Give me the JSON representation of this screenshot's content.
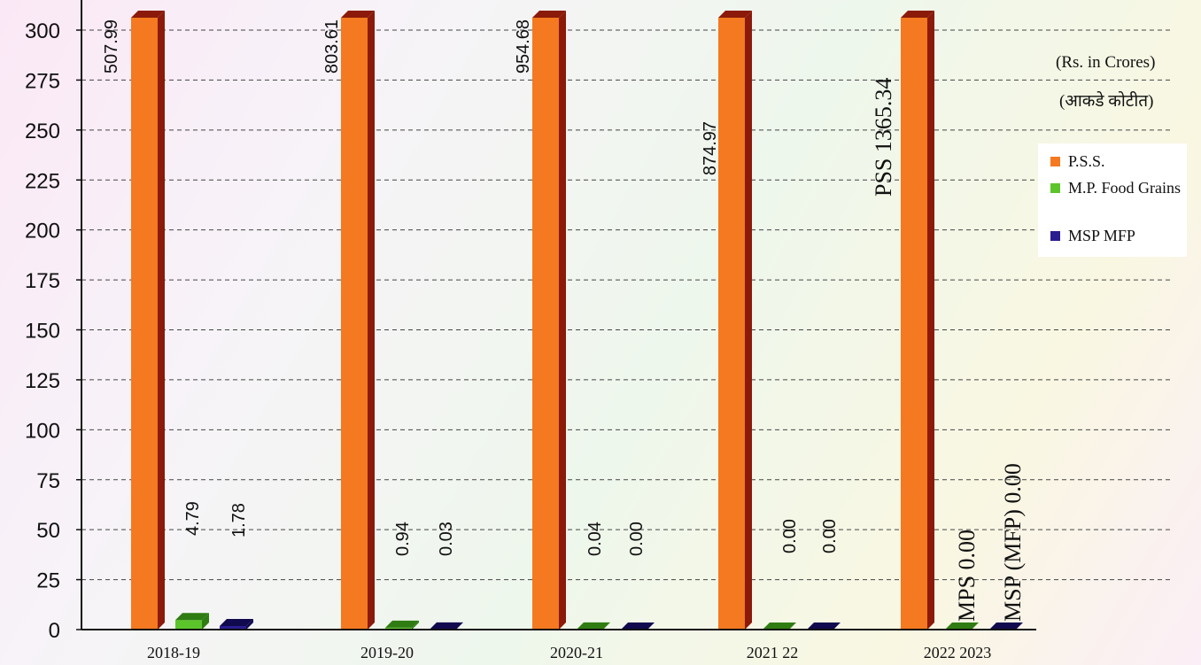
{
  "chart_data": {
    "type": "bar",
    "unit_note": "(Rs. in Crores)",
    "unit_note_local": "(आकडे कोटीत)",
    "categories": [
      "2018-19",
      "2019-20",
      "2020-21",
      "2021 22",
      "2022 2023"
    ],
    "ylim": [
      0,
      300
    ],
    "yticks": [
      0,
      25,
      50,
      75,
      100,
      125,
      150,
      175,
      200,
      225,
      250,
      275,
      300
    ],
    "grid": true,
    "legend_position": "right",
    "series": [
      {
        "name": "P.S.S.",
        "color": "#f47920",
        "side_color": "#8b1a0a",
        "values": [
          507.99,
          803.61,
          954.68,
          874.97,
          1365.34
        ],
        "labels": [
          "507.99",
          "803.61",
          "954.68",
          "874.97",
          "PSS 1365.34"
        ]
      },
      {
        "name": "M.P. Food Grains",
        "color": "#5cc42b",
        "side_color": "#2f7d12",
        "values": [
          4.79,
          0.94,
          0.04,
          0.0,
          0.0
        ],
        "labels": [
          "4.79",
          "0.94",
          "0.04",
          "0.00",
          "MPS 0.00"
        ]
      },
      {
        "name": "MSP MFP",
        "color": "#2a1d8f",
        "side_color": "#120a4f",
        "values": [
          1.78,
          0.03,
          0.0,
          0.0,
          0.0
        ],
        "labels": [
          "1.78",
          "0.03",
          "0.00",
          "0.00",
          "MSP (MFP) 0.00"
        ]
      }
    ]
  }
}
